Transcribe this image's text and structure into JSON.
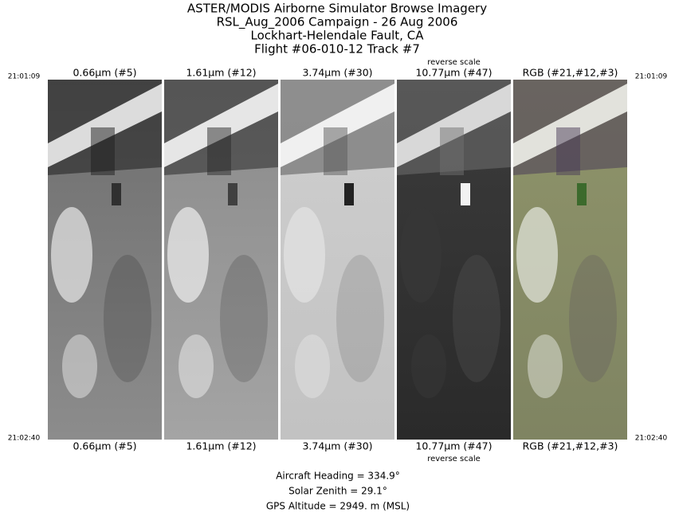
{
  "header": {
    "lines": [
      "ASTER/MODIS Airborne Simulator Browse Imagery",
      "RSL_Aug_2006 Campaign - 26 Aug 2006",
      "Lockhart-Helendale Fault, CA",
      "Flight #06-010-12 Track #7"
    ]
  },
  "time_labels": {
    "start": "21:01:09",
    "end": "21:02:40"
  },
  "panels": [
    {
      "top_label": "0.66µm (#5)",
      "bottom_label": "0.66µm (#5)"
    },
    {
      "top_label": "1.61µm (#12)",
      "bottom_label": "1.61µm (#12)"
    },
    {
      "top_label": "3.74µm (#30)",
      "bottom_label": "3.74µm (#30)"
    },
    {
      "top_label": "10.77µm (#47)",
      "bottom_label": "10.77µm (#47)",
      "note": "reverse scale"
    },
    {
      "top_label": "RGB (#21,#12,#3)",
      "bottom_label": "RGB (#21,#12,#3)"
    }
  ],
  "footer": {
    "lines": [
      "Aircraft Heading =  334.9°",
      "Solar Zenith =   29.1°",
      "GPS Altitude =   2949. m (MSL)"
    ]
  }
}
